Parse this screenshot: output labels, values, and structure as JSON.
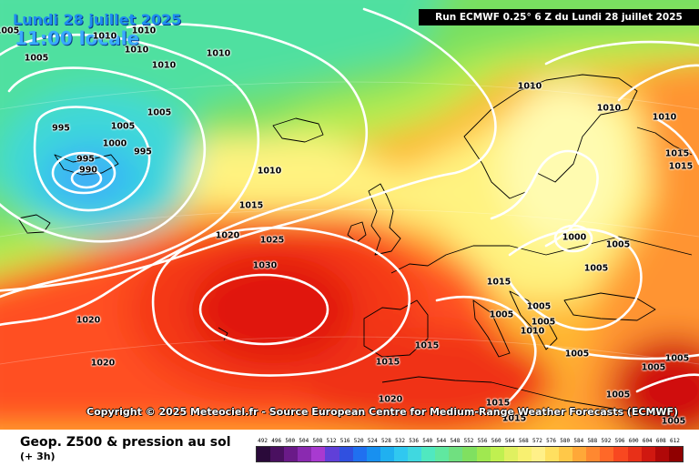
{
  "header": {
    "date": "Lundi 28 juillet 2025",
    "local_time": "11:00 locale",
    "run_banner": "Run ECMWF 0.25° 6 Z du Lundi 28 juillet 2025"
  },
  "copyright": "Copyright © 2025 Meteociel.fr - Source European Centre for Medium-Range Weather Forecasts (ECMWF)",
  "product": {
    "title": "Geop. Z500 & pression au sol",
    "subtitle": "(+ 3h)"
  },
  "isobar_labels": [
    "1005",
    "1010",
    "1010",
    "1010",
    "1005",
    "1010",
    "1010",
    "1010",
    "1005",
    "995",
    "1005",
    "1000",
    "995",
    "995",
    "990",
    "1010",
    "1015",
    "1020",
    "1025",
    "1030",
    "1020",
    "1020",
    "1010",
    "1010",
    "1015",
    "1015",
    "1000",
    "1005",
    "1005",
    "1015",
    "1005",
    "1005",
    "1010",
    "1015",
    "1005",
    "1015",
    "1005",
    "1005",
    "1005",
    "1005",
    "1020",
    "1015",
    "1015",
    "1005"
  ],
  "scale": {
    "ticks": [
      "492",
      "496",
      "500",
      "504",
      "508",
      "512",
      "516",
      "520",
      "524",
      "528",
      "532",
      "536",
      "540",
      "544",
      "548",
      "552",
      "556",
      "560",
      "564",
      "568",
      "572",
      "576",
      "580",
      "584",
      "588",
      "592",
      "596",
      "600",
      "604",
      "608",
      "612"
    ],
    "colors": [
      "#2a0a3a",
      "#4a1060",
      "#6a1a88",
      "#8a2ab0",
      "#a83ad0",
      "#6040d8",
      "#3050e0",
      "#2070f0",
      "#1890f0",
      "#20b0f0",
      "#30c8f0",
      "#40d8e0",
      "#50e8c0",
      "#60e8a0",
      "#70e080",
      "#80e060",
      "#a0e850",
      "#c0f050",
      "#e0f060",
      "#f8f070",
      "#fff088",
      "#ffe060",
      "#ffc848",
      "#ffa838",
      "#ff8830",
      "#ff6828",
      "#f84820",
      "#e83018",
      "#d01810",
      "#b00808",
      "#900000"
    ]
  }
}
